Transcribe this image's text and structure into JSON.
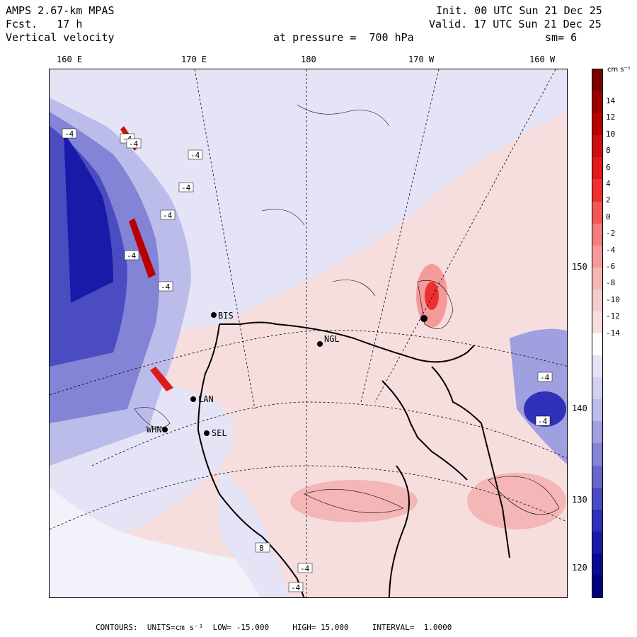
{
  "header": {
    "model": "AMPS 2.67-km MPAS",
    "forecast": "Fcst.   17 h",
    "field": "Vertical velocity",
    "pressure": "at pressure =  700 hPa",
    "init": "Init. 00 UTC Sun 21 Dec 25",
    "valid": "Valid. 17 UTC Sun 21 Dec 25",
    "smoothing": "sm= 6"
  },
  "lon_labels": [
    "160 E",
    "170 E",
    "180",
    "170 W",
    "160 W"
  ],
  "lat_labels": [
    "150 W",
    "140 W",
    "130 W",
    "120 W"
  ],
  "stations": [
    {
      "code": "BIS"
    },
    {
      "code": "NGL"
    },
    {
      "code": "LAN"
    },
    {
      "code": "SEL"
    },
    {
      "code": "WHN"
    }
  ],
  "contour_labels": [
    "-4",
    "-4",
    "-4",
    "-4",
    "-4",
    "-4",
    "-4",
    "-4",
    "-4",
    "-4",
    "8",
    "-4",
    "-4"
  ],
  "colorbar": {
    "units": "cm s⁻¹",
    "ticks": [
      "14",
      "12",
      "10",
      "8",
      "6",
      "4",
      "2",
      "0",
      "-2",
      "-4",
      "-6",
      "-8",
      "-10",
      "-12",
      "-14"
    ],
    "colors": [
      "#7a0000",
      "#9a0000",
      "#b80000",
      "#cc1010",
      "#e01a1a",
      "#ee3030",
      "#f25858",
      "#f47e7e",
      "#f49a9a",
      "#f4b6b6",
      "#f4cccc",
      "#f6dede",
      "#ffffff",
      "#e4e4f6",
      "#d2d2f0",
      "#bcbcea",
      "#a0a0e0",
      "#8484d6",
      "#6868cc",
      "#4c4cc2",
      "#3030b8",
      "#1a1aa8",
      "#0a0a90",
      "#00007a"
    ]
  },
  "footer": {
    "label": "CONTOURS:",
    "units": "UNITS=cm s⁻¹",
    "low": "LOW= -15.000",
    "high": "HIGH= 15.000",
    "interval": "INTERVAL=  1.0000"
  }
}
